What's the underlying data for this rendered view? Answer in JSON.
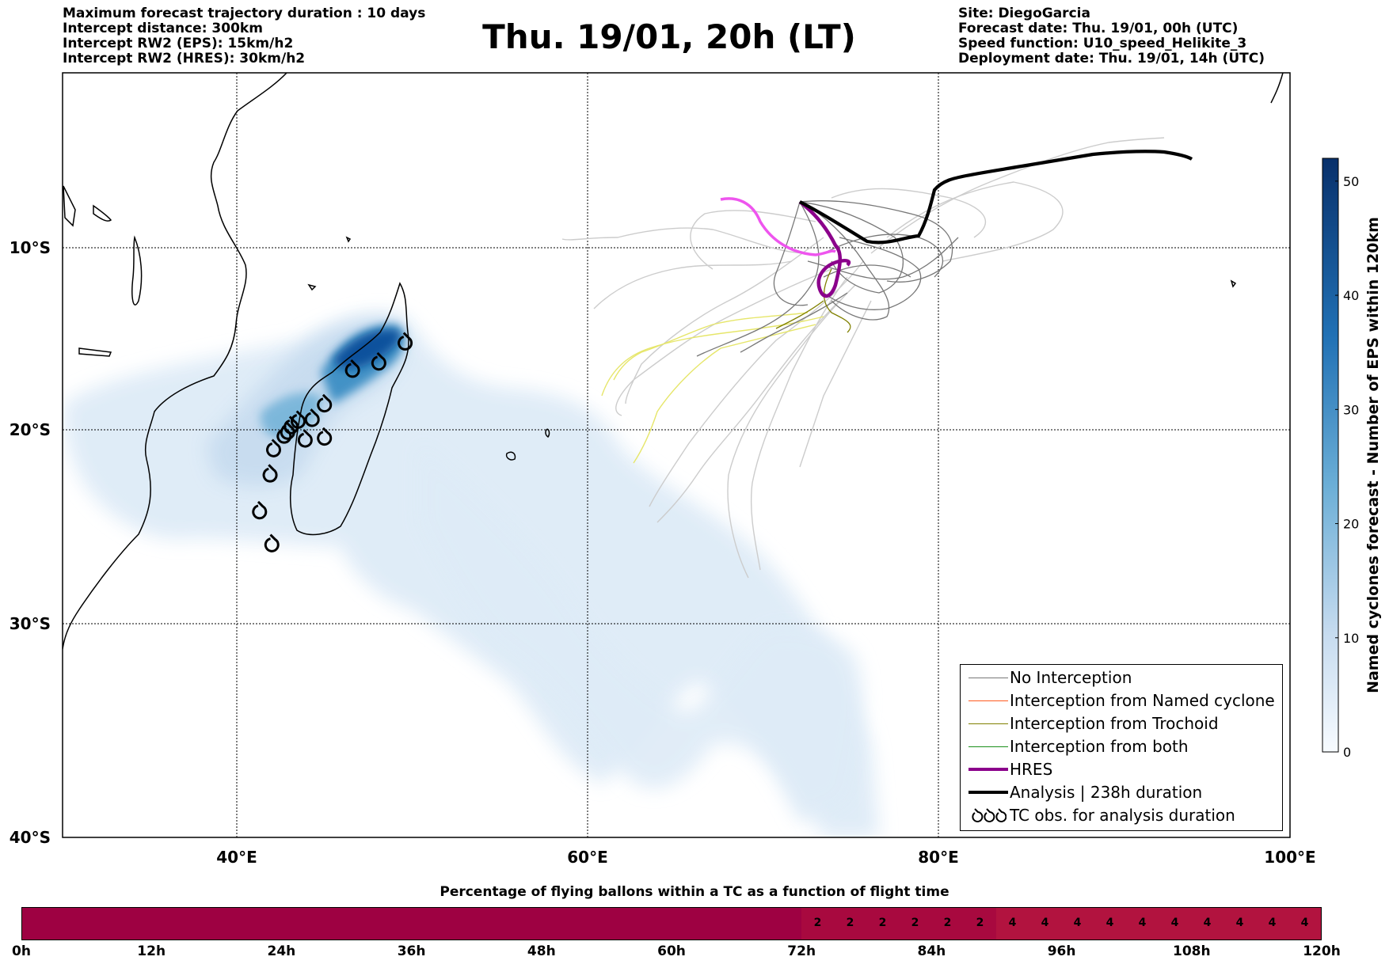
{
  "header_left": [
    "Maximum forecast trajectory duration : 10 days",
    "Intercept distance: 300km",
    "Intercept RW2 (EPS):  15km/h2",
    "Intercept RW2 (HRES): 30km/h2"
  ],
  "title": "Thu. 19/01, 20h (LT)",
  "header_right": [
    "Site: DiegoGarcia",
    "Forecast date: Thu. 19/01, 00h (UTC)",
    "Speed function: U10_speed_Helikite_3",
    "Deployment date: Thu. 19/01, 14h (UTC)"
  ],
  "map": {
    "lat_labels": [
      "10°S",
      "20°S",
      "30°S",
      "40°S"
    ],
    "lon_labels": [
      "40°E",
      "60°E",
      "80°E",
      "100°E"
    ],
    "lat_values": [
      -10,
      -20,
      -30,
      -40
    ],
    "lon_values": [
      40,
      60,
      80,
      100
    ],
    "extent": {
      "lon_min": 30,
      "lon_max": 100,
      "lat_min": -40,
      "lat_max": 1
    },
    "grid": true,
    "colors": {
      "no_interception": "#777777",
      "named_cyclone": "#ff5a1f",
      "trochoid": "#808000",
      "both": "#1a8f1a",
      "hres": "#8b008b",
      "analysis": "#000000",
      "ensemble_light": "#cccccc",
      "ensemble_yellow": "#e6e66a"
    }
  },
  "colorbar": {
    "label": "Named cyclones forecast - Number of EPS within 120km",
    "ticks": [
      "0",
      "10",
      "20",
      "30",
      "40",
      "50"
    ],
    "tick_values": [
      0,
      10,
      20,
      30,
      40,
      50
    ],
    "min": 0,
    "max": 52,
    "colormap": "Blues"
  },
  "legend": [
    {
      "label": "No Interception",
      "style": "thin",
      "color": "#777777"
    },
    {
      "label": "Interception from Named cyclone",
      "style": "thin",
      "color": "#ff5a1f"
    },
    {
      "label": "Interception from Trochoid",
      "style": "thin",
      "color": "#808000"
    },
    {
      "label": "Interception from both",
      "style": "thin",
      "color": "#1a8f1a"
    },
    {
      "label": "HRES",
      "style": "thick",
      "color": "#8b008b"
    },
    {
      "label": "Analysis | 238h duration",
      "style": "thick",
      "color": "#000000"
    },
    {
      "label": "TC obs. for analysis duration",
      "style": "tc-symbols",
      "color": "#000000"
    }
  ],
  "flight_bar": {
    "title": "Percentage of flying ballons within a TC as a function of flight time",
    "hour_labels": [
      "0h",
      "12h",
      "24h",
      "36h",
      "48h",
      "60h",
      "72h",
      "84h",
      "96h",
      "108h",
      "120h"
    ],
    "hours_max": 120,
    "segments": [
      {
        "from_h": 0,
        "to_h": 72,
        "value": "",
        "color": "#9e0142"
      },
      {
        "from_h": 72,
        "to_h": 90,
        "value": "2",
        "color": "#a8093f"
      },
      {
        "from_h": 90,
        "to_h": 120,
        "value": "4",
        "color": "#b2133f"
      }
    ],
    "cells": [
      {
        "h": 73.5,
        "value": "2"
      },
      {
        "h": 76.5,
        "value": "2"
      },
      {
        "h": 79.5,
        "value": "2"
      },
      {
        "h": 82.5,
        "value": "2"
      },
      {
        "h": 85.5,
        "value": "2"
      },
      {
        "h": 88.5,
        "value": "2"
      },
      {
        "h": 91.5,
        "value": "4"
      },
      {
        "h": 94.5,
        "value": "4"
      },
      {
        "h": 97.5,
        "value": "4"
      },
      {
        "h": 100.5,
        "value": "4"
      },
      {
        "h": 103.5,
        "value": "4"
      },
      {
        "h": 106.5,
        "value": "4"
      },
      {
        "h": 109.5,
        "value": "4"
      },
      {
        "h": 112.5,
        "value": "4"
      },
      {
        "h": 115.5,
        "value": "4"
      },
      {
        "h": 118.5,
        "value": "4"
      }
    ]
  },
  "tc_observations": [
    {
      "lon": 49.5,
      "lat": -15.2
    },
    {
      "lon": 48,
      "lat": -16.3
    },
    {
      "lon": 46.5,
      "lat": -16.7
    },
    {
      "lon": 44.9,
      "lat": -18.6
    },
    {
      "lon": 44.2,
      "lat": -19.4
    },
    {
      "lon": 43.4,
      "lat": -19.5
    },
    {
      "lon": 43.0,
      "lat": -19.8
    },
    {
      "lon": 42.8,
      "lat": -20.1
    },
    {
      "lon": 42.6,
      "lat": -20.3
    },
    {
      "lon": 44.9,
      "lat": -20.4
    },
    {
      "lon": 43.8,
      "lat": -20.5
    },
    {
      "lon": 42.0,
      "lat": -21.0
    },
    {
      "lon": 41.8,
      "lat": -22.3
    },
    {
      "lon": 41.2,
      "lat": -24.2
    },
    {
      "lon": 41.9,
      "lat": -25.9
    }
  ]
}
